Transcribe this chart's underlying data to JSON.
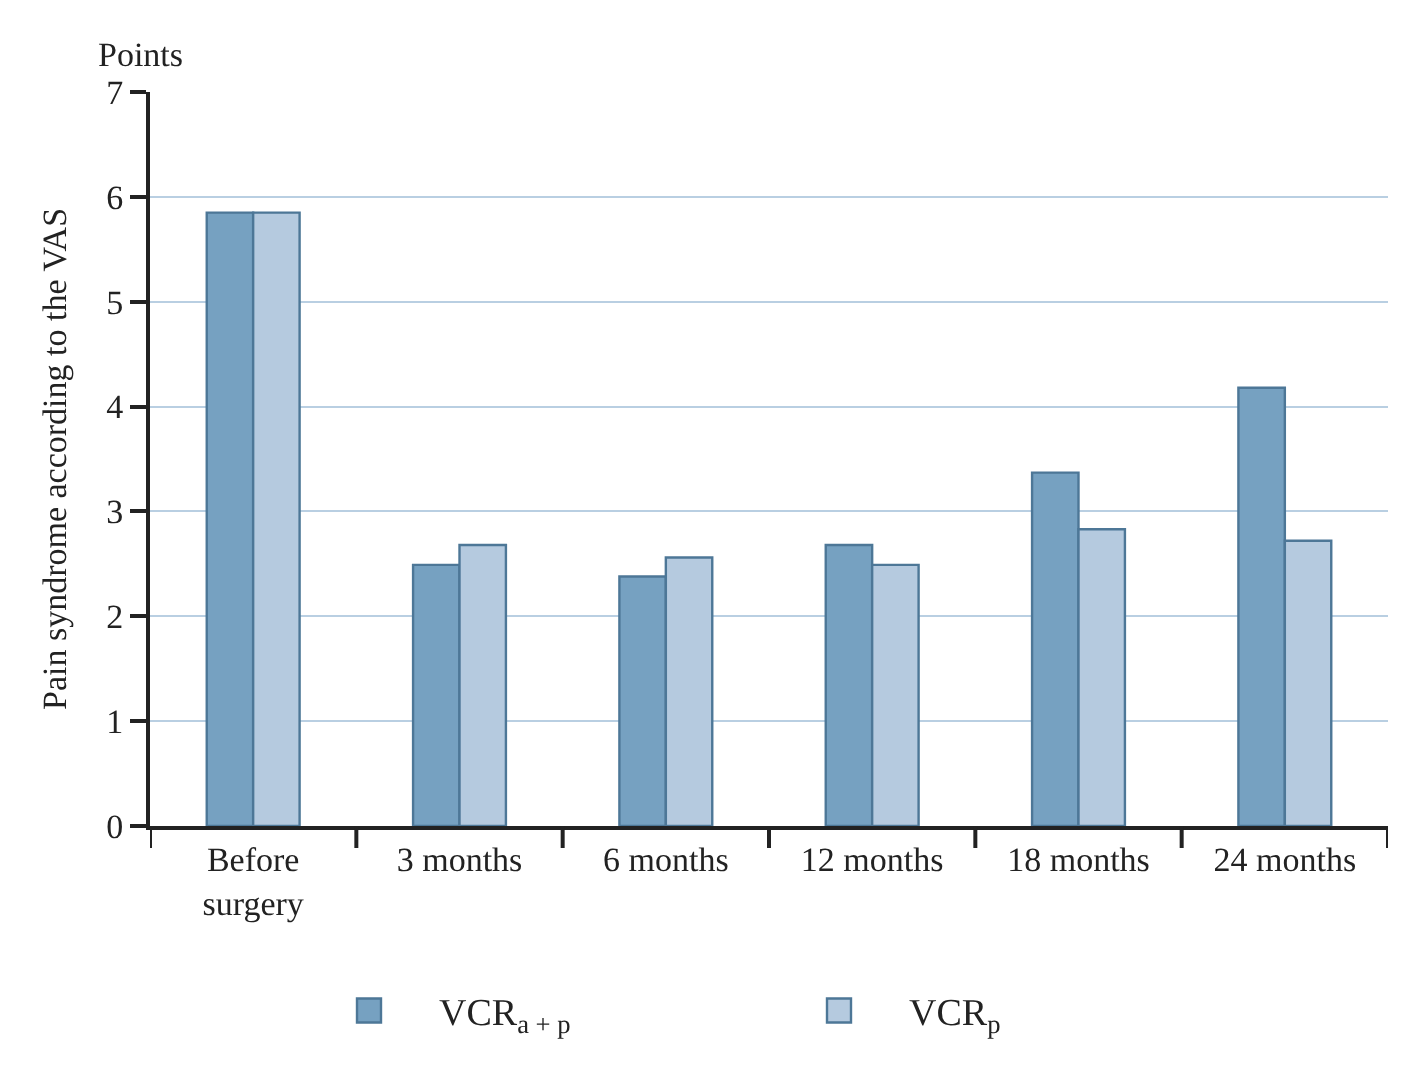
{
  "chart_data": {
    "type": "bar",
    "ylabel": "Pain syndrome according to the VAS",
    "annotations": [
      "Points"
    ],
    "categories": [
      "Before surgery",
      "3 months",
      "6 months",
      "12 months",
      "18 months",
      "24 months"
    ],
    "series": [
      {
        "name": "VCR$_{a + p}$",
        "color": "#76a1c1",
        "values": [
          5.85,
          2.49,
          2.38,
          2.68,
          3.37,
          4.18
        ]
      },
      {
        "name": "VCR$_{p}$",
        "color": "#b5cadf",
        "values": [
          5.85,
          2.68,
          2.56,
          2.49,
          2.83,
          2.72
        ]
      }
    ],
    "ylim": [
      0,
      7
    ],
    "yticks": [
      0,
      1,
      2,
      3,
      4,
      5,
      6,
      7
    ],
    "grid": "y",
    "legend": "bottom"
  }
}
